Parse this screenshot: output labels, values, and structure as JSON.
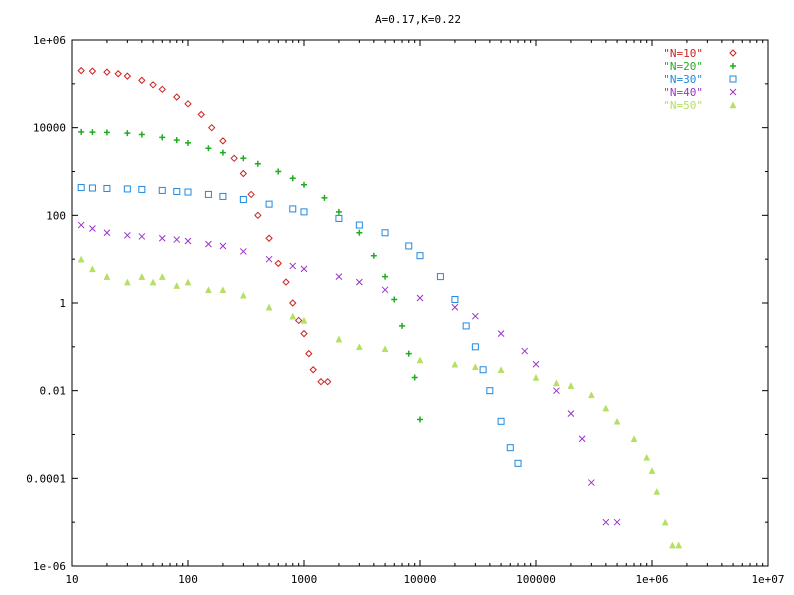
{
  "chart_data": {
    "type": "scatter",
    "title": "A=0.17,K=0.22",
    "xscale": "log",
    "yscale": "log",
    "xlim": [
      10,
      10000000
    ],
    "ylim": [
      1e-06,
      1000000
    ],
    "grid": false,
    "legend_position": "top-right",
    "x_ticks": [
      {
        "value": 10,
        "label": "10"
      },
      {
        "value": 100,
        "label": "100"
      },
      {
        "value": 1000,
        "label": "1000"
      },
      {
        "value": 10000,
        "label": "10000"
      },
      {
        "value": 100000,
        "label": "100000"
      },
      {
        "value": 1000000,
        "label": "1e+06"
      },
      {
        "value": 10000000,
        "label": "1e+07"
      }
    ],
    "y_ticks": [
      {
        "value": 1e-06,
        "label": "1e-06"
      },
      {
        "value": 0.0001,
        "label": "0.0001"
      },
      {
        "value": 0.01,
        "label": "0.01"
      },
      {
        "value": 1,
        "label": "1"
      },
      {
        "value": 100,
        "label": "100"
      },
      {
        "value": 10000,
        "label": "10000"
      },
      {
        "value": 1000000,
        "label": "1e+06"
      }
    ],
    "series": [
      {
        "name": "\"N=10\"",
        "color": "#cc2222",
        "marker": "diamond",
        "points": [
          [
            12,
            200000
          ],
          [
            15,
            195000
          ],
          [
            20,
            185000
          ],
          [
            25,
            170000
          ],
          [
            30,
            150000
          ],
          [
            40,
            120000
          ],
          [
            50,
            95000
          ],
          [
            60,
            75000
          ],
          [
            80,
            50000
          ],
          [
            100,
            35000
          ],
          [
            130,
            20000
          ],
          [
            160,
            10000
          ],
          [
            200,
            5000
          ],
          [
            250,
            2000
          ],
          [
            300,
            900
          ],
          [
            350,
            300
          ],
          [
            400,
            100
          ],
          [
            500,
            30
          ],
          [
            600,
            8
          ],
          [
            700,
            3
          ],
          [
            800,
            1
          ],
          [
            900,
            0.4
          ],
          [
            1000,
            0.2
          ],
          [
            1100,
            0.07
          ],
          [
            1200,
            0.03
          ],
          [
            1400,
            0.016
          ],
          [
            1600,
            0.016
          ]
        ]
      },
      {
        "name": "\"N=20\"",
        "color": "#22aa22",
        "marker": "plus",
        "points": [
          [
            12,
            8000
          ],
          [
            15,
            7900
          ],
          [
            20,
            7800
          ],
          [
            30,
            7500
          ],
          [
            40,
            7000
          ],
          [
            60,
            6000
          ],
          [
            80,
            5200
          ],
          [
            100,
            4500
          ],
          [
            150,
            3400
          ],
          [
            200,
            2700
          ],
          [
            300,
            2000
          ],
          [
            400,
            1500
          ],
          [
            600,
            1000
          ],
          [
            800,
            700
          ],
          [
            1000,
            500
          ],
          [
            1500,
            250
          ],
          [
            2000,
            120
          ],
          [
            3000,
            40
          ],
          [
            4000,
            12
          ],
          [
            5000,
            4
          ],
          [
            6000,
            1.2
          ],
          [
            7000,
            0.3
          ],
          [
            8000,
            0.07
          ],
          [
            9000,
            0.02
          ],
          [
            10000,
            0.0022
          ]
        ]
      },
      {
        "name": "\"N=30\"",
        "color": "#2288dd",
        "marker": "square",
        "points": [
          [
            12,
            430
          ],
          [
            15,
            420
          ],
          [
            20,
            410
          ],
          [
            30,
            400
          ],
          [
            40,
            390
          ],
          [
            60,
            370
          ],
          [
            80,
            350
          ],
          [
            100,
            340
          ],
          [
            150,
            300
          ],
          [
            200,
            270
          ],
          [
            300,
            230
          ],
          [
            500,
            180
          ],
          [
            800,
            140
          ],
          [
            1000,
            120
          ],
          [
            2000,
            85
          ],
          [
            3000,
            60
          ],
          [
            5000,
            40
          ],
          [
            8000,
            20
          ],
          [
            10000,
            12
          ],
          [
            15000,
            4
          ],
          [
            20000,
            1.2
          ],
          [
            25000,
            0.3
          ],
          [
            30000,
            0.1
          ],
          [
            35000,
            0.03
          ],
          [
            40000,
            0.01
          ],
          [
            50000,
            0.002
          ],
          [
            60000,
            0.0005
          ],
          [
            70000,
            0.00022
          ]
        ]
      },
      {
        "name": "\"N=40\"",
        "color": "#9933cc",
        "marker": "cross",
        "points": [
          [
            12,
            60
          ],
          [
            15,
            50
          ],
          [
            20,
            40
          ],
          [
            30,
            35
          ],
          [
            40,
            33
          ],
          [
            60,
            30
          ],
          [
            80,
            28
          ],
          [
            100,
            26
          ],
          [
            150,
            22
          ],
          [
            200,
            20
          ],
          [
            300,
            15
          ],
          [
            500,
            10
          ],
          [
            800,
            7
          ],
          [
            1000,
            6
          ],
          [
            2000,
            4
          ],
          [
            3000,
            3
          ],
          [
            5000,
            2
          ],
          [
            10000,
            1.3
          ],
          [
            20000,
            0.8
          ],
          [
            30000,
            0.5
          ],
          [
            50000,
            0.2
          ],
          [
            80000,
            0.08
          ],
          [
            100000,
            0.04
          ],
          [
            150000,
            0.01
          ],
          [
            200000,
            0.003
          ],
          [
            250000,
            0.0008
          ],
          [
            300000,
            8e-05
          ],
          [
            400000,
            1e-05
          ],
          [
            500000,
            1e-05
          ]
        ]
      },
      {
        "name": "\"N=50\"",
        "color": "#b5e061",
        "marker": "triangle",
        "points": [
          [
            12,
            10
          ],
          [
            15,
            6
          ],
          [
            20,
            4
          ],
          [
            30,
            3
          ],
          [
            40,
            4
          ],
          [
            50,
            3
          ],
          [
            60,
            4
          ],
          [
            80,
            2.5
          ],
          [
            100,
            3
          ],
          [
            150,
            2
          ],
          [
            200,
            2
          ],
          [
            300,
            1.5
          ],
          [
            500,
            0.8
          ],
          [
            800,
            0.5
          ],
          [
            1000,
            0.4
          ],
          [
            2000,
            0.15
          ],
          [
            3000,
            0.1
          ],
          [
            5000,
            0.09
          ],
          [
            10000,
            0.05
          ],
          [
            20000,
            0.04
          ],
          [
            30000,
            0.035
          ],
          [
            50000,
            0.03
          ],
          [
            100000,
            0.02
          ],
          [
            150000,
            0.015
          ],
          [
            200000,
            0.013
          ],
          [
            300000,
            0.008
          ],
          [
            400000,
            0.004
          ],
          [
            500000,
            0.002
          ],
          [
            700000,
            0.0008
          ],
          [
            900000,
            0.0003
          ],
          [
            1000000,
            0.00015
          ],
          [
            1100000,
            5e-05
          ],
          [
            1300000,
            1e-05
          ],
          [
            1500000,
            3e-06
          ],
          [
            1700000,
            3e-06
          ]
        ]
      }
    ]
  }
}
